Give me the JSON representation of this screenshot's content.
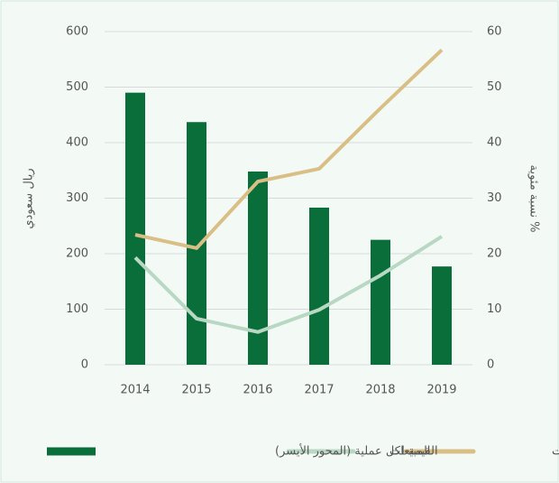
{
  "chart_data": {
    "type": "bar_line",
    "categories": [
      "2014",
      "2015",
      "2016",
      "2017",
      "2018",
      "2019"
    ],
    "ylabel": "ريال سعودي",
    "y2label": "نسبة مئوية %",
    "ylim": [
      0,
      600
    ],
    "yticks": [
      0,
      100,
      200,
      300,
      400,
      500,
      600
    ],
    "y2lim": [
      0,
      60
    ],
    "y2ticks": [
      0,
      10,
      20,
      30,
      40,
      50,
      60
    ],
    "grid": true,
    "series": [
      {
        "name": "القيمة لكل عملية (المحور الأيسر)",
        "type": "bar",
        "color": "#0a6e3a",
        "values": [
          490,
          437,
          348,
          283,
          225,
          177
        ]
      },
      {
        "name": "المبيعات",
        "type": "line",
        "axis": "y2",
        "color": "#b9d8c3",
        "values": [
          19.3,
          8.3,
          5.9,
          9.9,
          16.1,
          23.1
        ]
      },
      {
        "name": "عدد العمليات",
        "type": "line",
        "axis": "y2",
        "color": "#d9bf85",
        "values": [
          23.4,
          21.0,
          33.0,
          35.3,
          46.2,
          56.7
        ]
      }
    ]
  }
}
